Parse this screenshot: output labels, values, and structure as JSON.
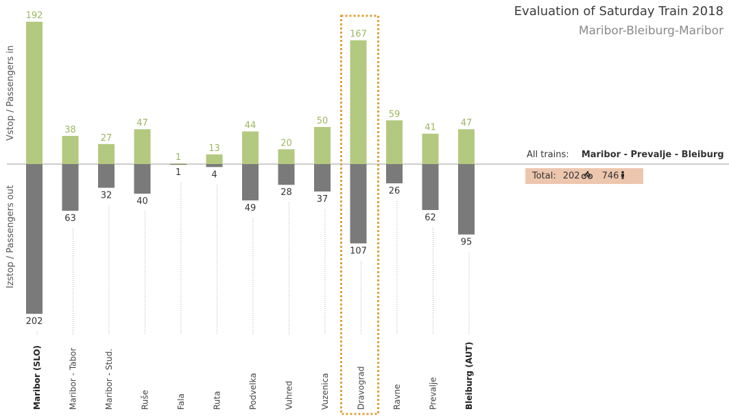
{
  "header": {
    "title": "Evaluation of Saturday Train 2018",
    "subtitle": "Maribor-Bleiburg-Maribor"
  },
  "axis": {
    "in_label": "Vstop / Passengers in",
    "out_label": "Izstop / Passengers out"
  },
  "summary": {
    "alltrains_label": "All trains:",
    "route": "Maribor - Prevalje - Bleiburg",
    "total_label": "Total:",
    "bikes_value": "202",
    "bike_icon": "bicycle-icon",
    "persons_value": "746",
    "person_icon": "person-icon"
  },
  "colors": {
    "in": "#b3c97f",
    "out": "#7a7a7a",
    "highlight": "#e0a13a",
    "total_bg": "#edc6ae"
  },
  "chart_data": {
    "type": "bar",
    "categories": [
      "Maribor (SLO)",
      "Maribor - Tabor",
      "Maribor - Stud.",
      "Ruše",
      "Fala",
      "Ruta",
      "Podvelka",
      "Vuhred",
      "Vuzenica",
      "Dravograd",
      "Ravne",
      "Prevalje",
      "Bleiburg (AUT)"
    ],
    "bold_categories": [
      "Maribor (SLO)",
      "Bleiburg (AUT)"
    ],
    "highlighted_category": "Dravograd",
    "series": [
      {
        "name": "Vstop / Passengers in",
        "values": [
          192,
          38,
          27,
          47,
          1,
          13,
          44,
          20,
          50,
          167,
          59,
          41,
          47
        ]
      },
      {
        "name": "Izstop / Passengers out",
        "values": [
          202,
          63,
          32,
          40,
          1,
          4,
          49,
          28,
          37,
          107,
          26,
          62,
          95
        ]
      }
    ],
    "ylim": [
      -202,
      192
    ],
    "grid": false
  }
}
